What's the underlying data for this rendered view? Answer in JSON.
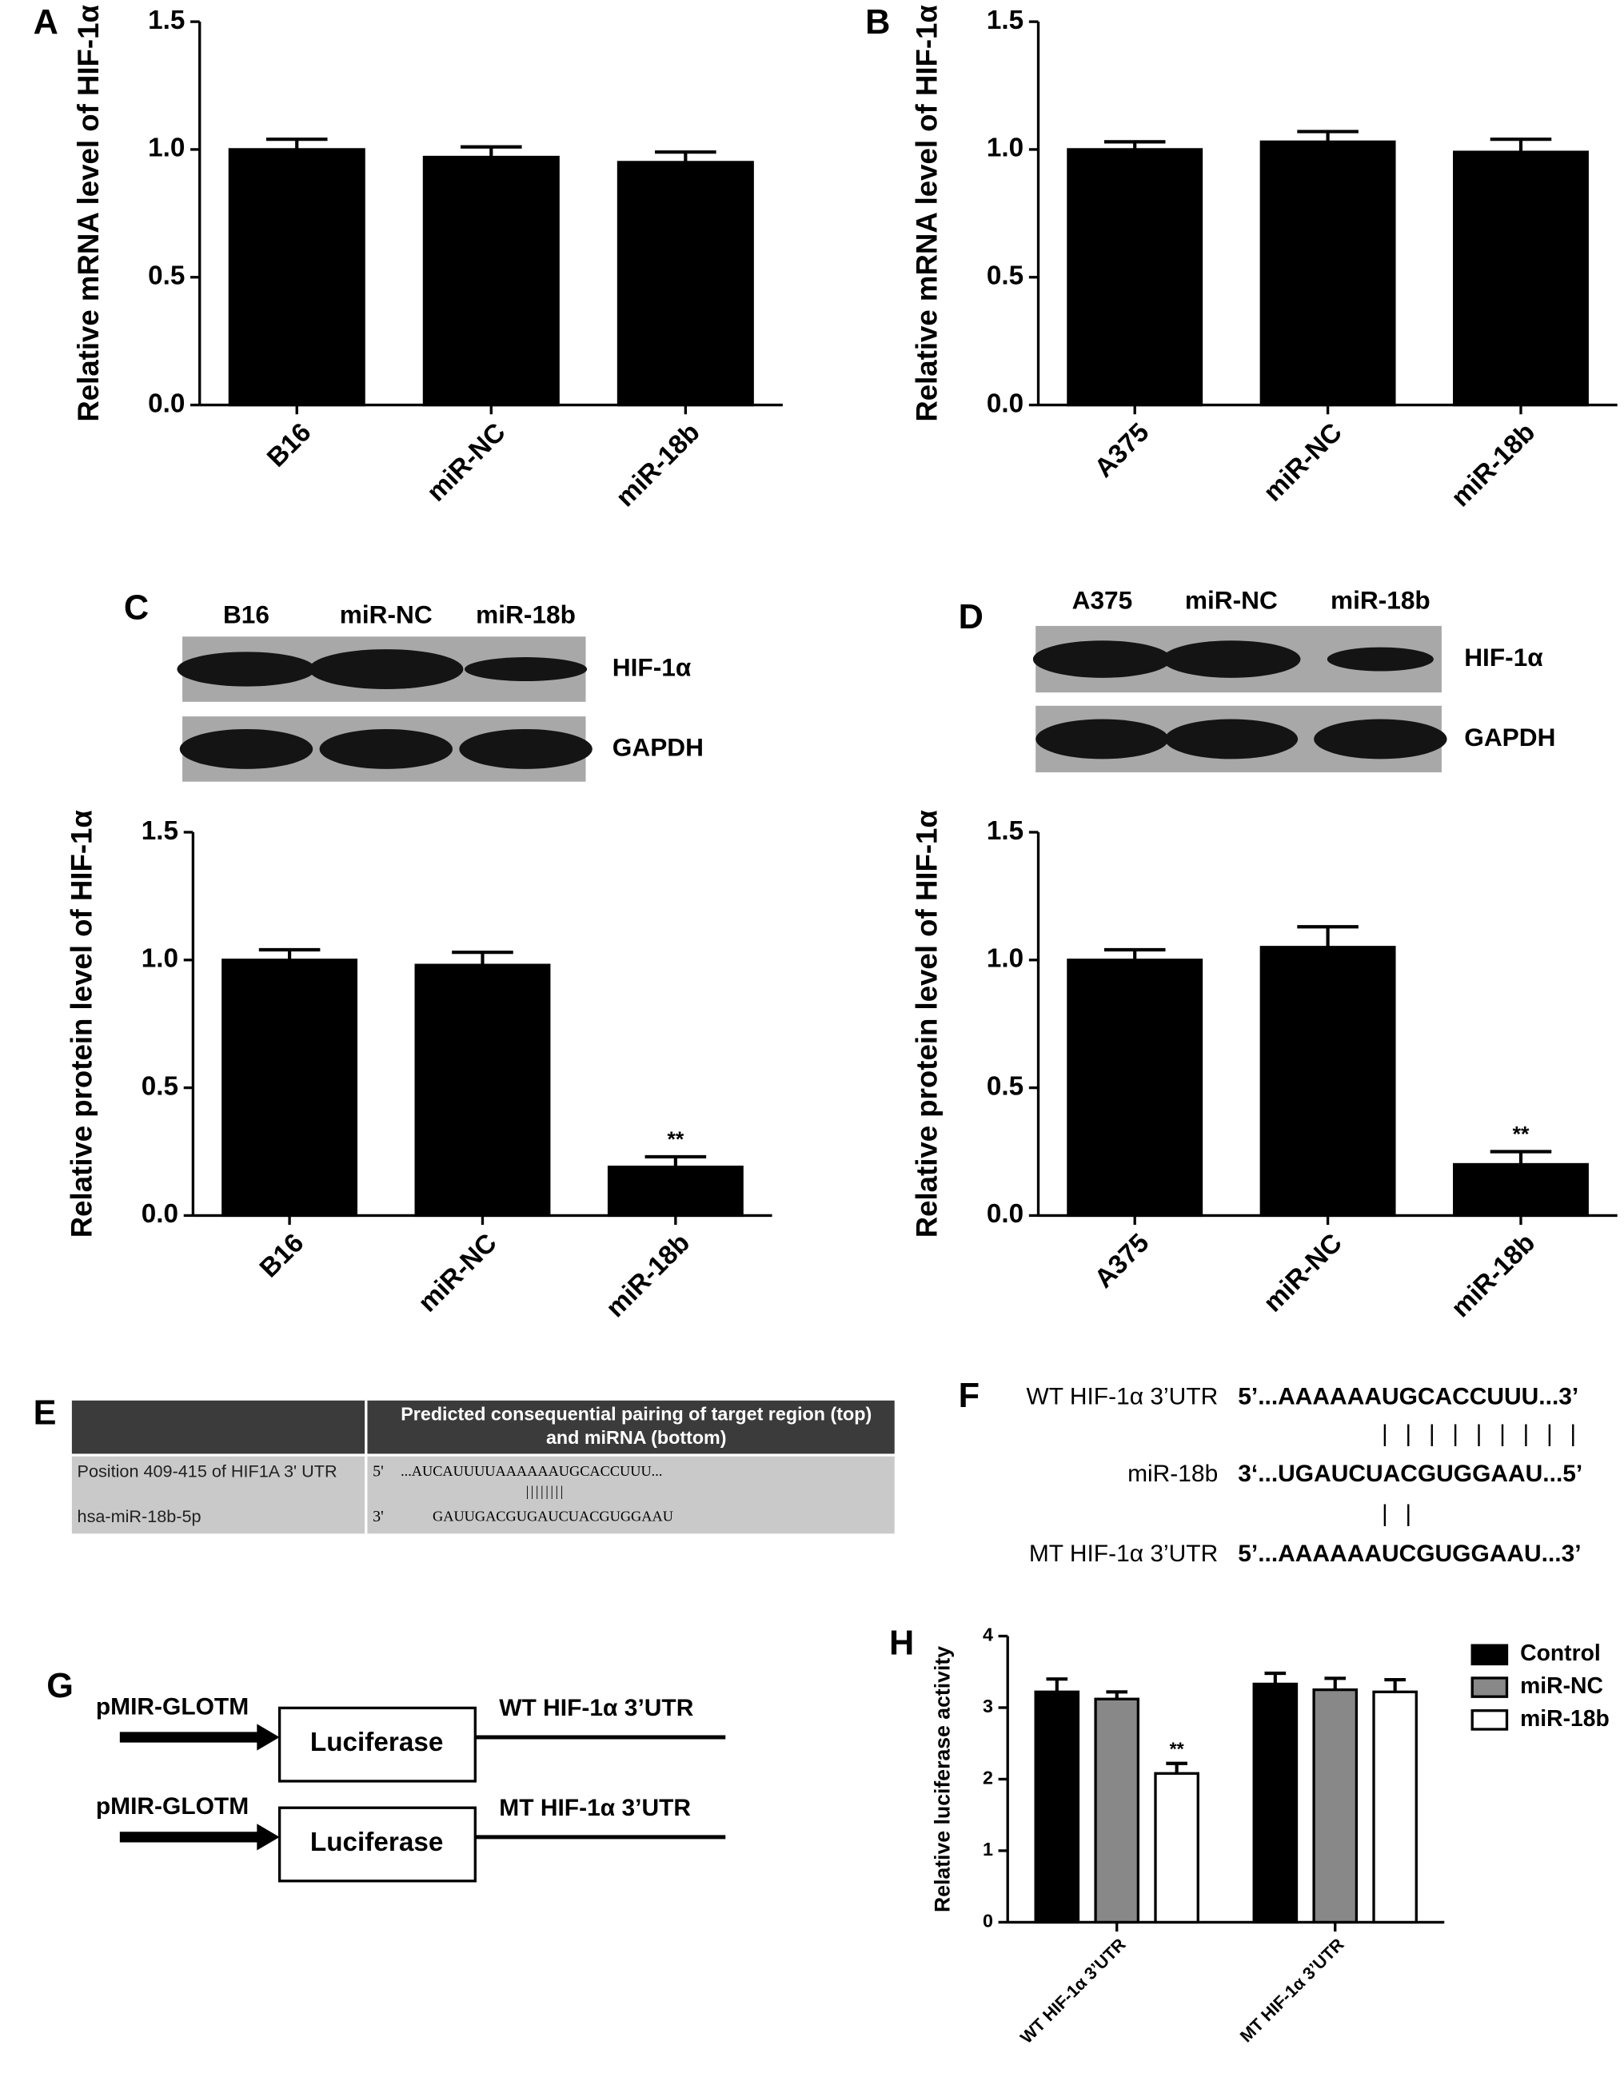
{
  "chart_data": [
    {
      "type": "bar",
      "label": "A",
      "ylabel": "Relative mRNA level of HIF-1α",
      "categories": [
        "B16",
        "miR-NC",
        "miR-18b"
      ],
      "values": [
        1.0,
        0.97,
        0.95
      ],
      "errors": [
        0.04,
        0.04,
        0.04
      ],
      "color": "#000000",
      "ylim": [
        0,
        1.5
      ],
      "yticks": [
        {
          "value": 0,
          "label": "0.0"
        },
        {
          "value": 0.5,
          "label": "0.5"
        },
        {
          "value": 1,
          "label": "1.0"
        },
        {
          "value": 1.5,
          "label": "1.5"
        }
      ]
    },
    {
      "type": "bar",
      "label": "B",
      "ylabel": "Relative mRNA level of HIF-1α",
      "categories": [
        "A375",
        "miR-NC",
        "miR-18b"
      ],
      "values": [
        1.0,
        1.03,
        0.99
      ],
      "errors": [
        0.03,
        0.04,
        0.05
      ],
      "color": "#000000",
      "ylim": [
        0,
        1.5
      ],
      "yticks": [
        {
          "value": 0,
          "label": "0.0"
        },
        {
          "value": 0.5,
          "label": "0.5"
        },
        {
          "value": 1,
          "label": "1.0"
        },
        {
          "value": 1.5,
          "label": "1.5"
        }
      ]
    },
    {
      "type": "bar",
      "ylabel": "Relative protein level of HIF-1α",
      "categories": [
        "B16",
        "miR-NC",
        "miR-18b"
      ],
      "values": [
        1.0,
        0.98,
        0.19
      ],
      "errors": [
        0.04,
        0.05,
        0.04
      ],
      "annotation": "**",
      "color": "#000000",
      "ylim": [
        0,
        1.5
      ],
      "yticks": [
        {
          "value": 0,
          "label": "0.0"
        },
        {
          "value": 0.5,
          "label": "0.5"
        },
        {
          "value": 1,
          "label": "1.0"
        },
        {
          "value": 1.5,
          "label": "1.5"
        }
      ]
    },
    {
      "type": "bar",
      "ylabel": "Relative protein level of HIF-1α",
      "categories": [
        "A375",
        "miR-NC",
        "miR-18b"
      ],
      "values": [
        1.0,
        1.05,
        0.2
      ],
      "errors": [
        0.04,
        0.08,
        0.05
      ],
      "annotation": "**",
      "color": "#000000",
      "ylim": [
        0,
        1.5
      ],
      "yticks": [
        {
          "value": 0,
          "label": "0.0"
        },
        {
          "value": 0.5,
          "label": "0.5"
        },
        {
          "value": 1,
          "label": "1.0"
        },
        {
          "value": 1.5,
          "label": "1.5"
        }
      ]
    },
    {
      "type": "bar",
      "label": "H",
      "ylabel": "Relative luciferase activity",
      "categories": [
        "WT HIF-1α 3’UTR",
        "MT HIF-1α 3’UTR"
      ],
      "series": [
        {
          "name": "Control",
          "color": "#000000",
          "values": [
            3.22,
            3.33
          ],
          "errors": [
            0.18,
            0.15
          ]
        },
        {
          "name": "miR-NC",
          "color": "#888888",
          "values": [
            3.12,
            3.25
          ],
          "errors": [
            0.1,
            0.16
          ]
        },
        {
          "name": "miR-18b",
          "color": "#ffffff",
          "values": [
            2.08,
            3.22
          ],
          "errors": [
            0.14,
            0.17
          ]
        }
      ],
      "annotation": "**",
      "ylim": [
        0,
        4
      ],
      "yticks": [
        0,
        1,
        2,
        3,
        4
      ],
      "legend": "upper right"
    }
  ],
  "blots": [
    {
      "label": "C",
      "lanes": [
        "B16",
        "miR-NC",
        "miR-18b"
      ],
      "proteins": [
        "HIF-1α",
        "GAPDH"
      ]
    },
    {
      "label": "D",
      "lanes": [
        "A375",
        "miR-NC",
        "miR-18b"
      ],
      "proteins": [
        "HIF-1α",
        "GAPDH"
      ]
    }
  ],
  "table": {
    "label": "E",
    "header": [
      "Predicted consequential pairing of target region (top)",
      "and miRNA (bottom)"
    ],
    "rows": [
      [
        "Position 409-415 of HIF1A 3' UTR",
        "5'",
        "...AUCAUUUUAAAAAAUGCACCUUU..."
      ],
      [
        "",
        "",
        "||||||||"
      ],
      [
        "hsa-miR-18b-5p",
        "3'",
        "GAUUGACGUGAUCUACGUGGAAU"
      ]
    ]
  },
  "sequences": {
    "label": "F",
    "lines": [
      {
        "name": "WT HIF-1α 3’UTR",
        "seq": "5’...AAAAAAUGCACCUUU...3’"
      },
      {
        "seq": "| | | | | | | | |"
      },
      {
        "name": "miR-18b",
        "seq": "3‘...UGAUCUACGUGGAAU...5’"
      },
      {
        "seq": "| |"
      },
      {
        "name": "MT HIF-1α 3’UTR",
        "seq": "5’...AAAAAAUCGUGGAAU...3’"
      }
    ]
  },
  "diagram": {
    "label": "G",
    "constructs": [
      {
        "vector": "pMIR-GLOTM",
        "gene": "Luciferase",
        "utr": "WT HIF-1α 3’UTR"
      },
      {
        "vector": "pMIR-GLOTM",
        "gene": "Luciferase",
        "utr": "MT HIF-1α 3’UTR"
      }
    ]
  }
}
